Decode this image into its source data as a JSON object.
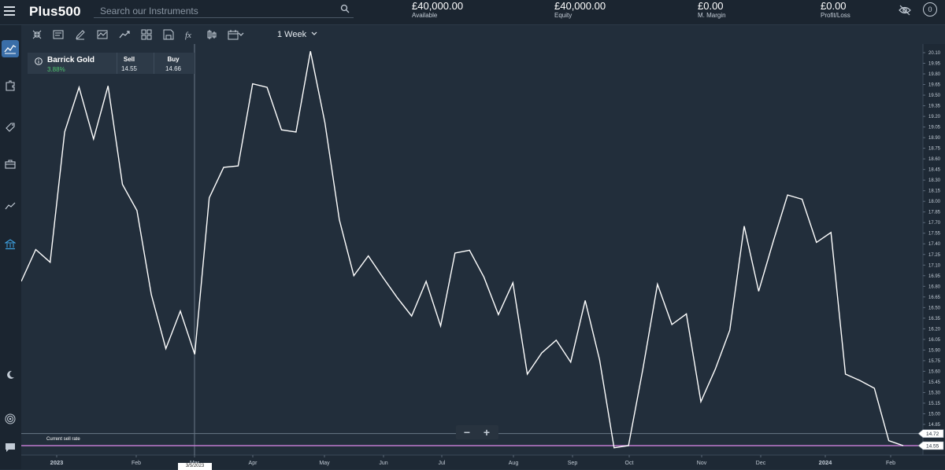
{
  "app": {
    "logo": "Plus500"
  },
  "search": {
    "placeholder": "Search our Instruments"
  },
  "account": [
    {
      "value": "£40,000.00",
      "label": "Available"
    },
    {
      "value": "£40,000.00",
      "label": "Equity"
    },
    {
      "value": "£0.00",
      "label": "M. Margin"
    },
    {
      "value": "£0.00",
      "label": "Profit/Loss"
    }
  ],
  "notifications": {
    "count": "0"
  },
  "toolbar": {
    "timeframe": "1 Week"
  },
  "instrument": {
    "name": "Barrick Gold",
    "change": "3.88%",
    "sell_label": "Sell",
    "sell_price": "14.55",
    "buy_label": "Buy",
    "buy_price": "14.66"
  },
  "chart_labels": {
    "current_sell_rate": "Current sell rate",
    "crosshair_date": "3/5/2023",
    "crosshair_price": "14.72",
    "sell_rate_tag": "14.55"
  },
  "colors": {
    "line": "#ffffff",
    "sell_rate_line": "#c07ad0",
    "accent": "#3a6ea8",
    "positive": "#4fc36e"
  },
  "chart_data": {
    "type": "line",
    "title": "",
    "xlabel": "",
    "ylabel": "",
    "ylim": [
      14.55,
      20.15
    ],
    "x_ticks": [
      "2023",
      "Feb",
      "Mar",
      "Apr",
      "May",
      "Jun",
      "Jul",
      "Aug",
      "Sep",
      "Oct",
      "Nov",
      "Dec",
      "2024",
      "Feb"
    ],
    "y_ticks": [
      "20.10",
      "19.95",
      "19.80",
      "19.65",
      "19.50",
      "19.35",
      "19.20",
      "19.05",
      "18.90",
      "18.75",
      "18.60",
      "18.45",
      "18.30",
      "18.15",
      "18.00",
      "17.85",
      "17.70",
      "17.55",
      "17.40",
      "17.25",
      "17.10",
      "16.95",
      "16.80",
      "16.65",
      "16.50",
      "16.35",
      "16.20",
      "16.05",
      "15.90",
      "15.75",
      "15.60",
      "15.45",
      "15.30",
      "15.15",
      "15.00",
      "14.85",
      "14.70"
    ],
    "series": [
      {
        "values": [
          16.87,
          17.32,
          17.14,
          18.98,
          19.61,
          18.88,
          19.63,
          18.24,
          17.87,
          16.68,
          15.92,
          16.45,
          15.84,
          18.05,
          18.48,
          18.5,
          19.66,
          19.61,
          19.01,
          18.98,
          20.12,
          19.11,
          17.74,
          16.95,
          17.23,
          16.93,
          16.64,
          16.38,
          16.87,
          16.24,
          17.27,
          17.31,
          16.93,
          16.4,
          16.85,
          15.56,
          15.86,
          16.04,
          15.73,
          16.6,
          15.76,
          14.52,
          14.55,
          15.64,
          16.83,
          16.26,
          16.41,
          15.17,
          15.63,
          16.18,
          17.65,
          16.73,
          17.43,
          18.09,
          18.03,
          17.42,
          17.56,
          15.56,
          15.47,
          15.36,
          14.62,
          14.55
        ]
      }
    ],
    "grid": false,
    "legend": "none"
  }
}
